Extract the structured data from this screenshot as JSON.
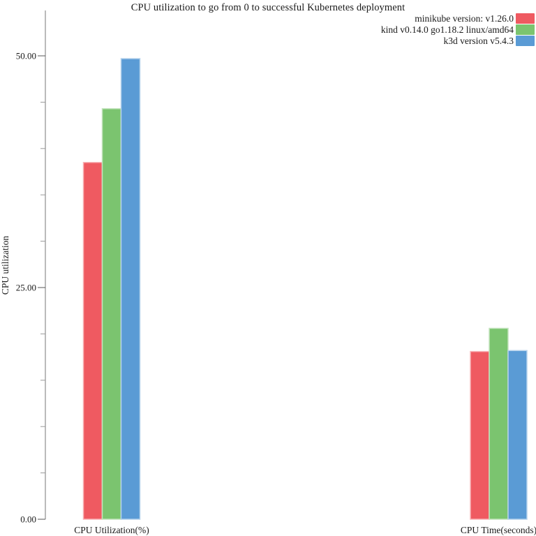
{
  "title": "CPU utilization to go from 0 to successful Kubernetes deployment",
  "chart_data": {
    "type": "bar",
    "title": "CPU utilization to go from 0 to successful Kubernetes deployment",
    "xlabel": "",
    "ylabel": "CPU utilization",
    "ylim": [
      0,
      50
    ],
    "grid": false,
    "legend_position": "top-right",
    "categories": [
      "CPU Utilization(%)",
      "CPU Time(seconds)"
    ],
    "series": [
      {
        "name": "minikube version: v1.26.0",
        "color": "#EF5A61",
        "values": [
          38.5,
          18.1
        ]
      },
      {
        "name": "kind v0.14.0 go1.18.2 linux/amd64",
        "color": "#7BC46F",
        "values": [
          44.3,
          20.6
        ]
      },
      {
        "name": "k3d version v5.4.3",
        "color": "#5A9BD5",
        "values": [
          49.7,
          18.2
        ]
      }
    ],
    "yticks": [
      {
        "value": 0,
        "label": "0.00"
      },
      {
        "value": 25,
        "label": "25.00"
      },
      {
        "value": 50,
        "label": "50.00"
      }
    ],
    "minor_tick_step": 5
  }
}
